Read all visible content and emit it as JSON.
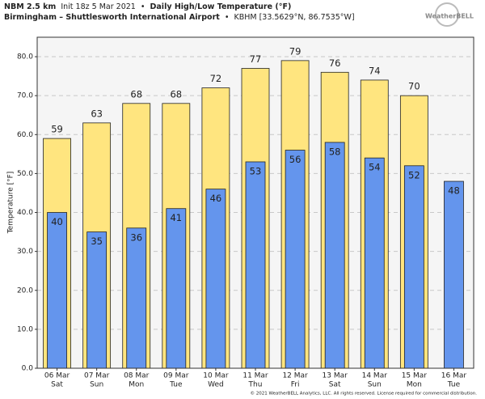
{
  "chart_data": {
    "type": "bar",
    "title_model": "NBM 2.5 km",
    "title_init": "Init 18z 5 Mar 2021",
    "separator": "•",
    "title_product": "Daily High/Low Temperature (°F)",
    "location": "Birmingham – Shuttlesworth International Airport",
    "station": "KBHM [33.5629°N, 86.7535°W]",
    "logo": "WeatherBELL",
    "footer": "© 2021 WeatherBELL Analytics, LLC. All rights reserved. License required for commercial distribution.",
    "y_label": "Temperature [°F]",
    "categories": [
      "06 Mar",
      "07 Mar",
      "08 Mar",
      "09 Mar",
      "10 Mar",
      "11 Mar",
      "12 Mar",
      "13 Mar",
      "14 Mar",
      "15 Mar",
      "16 Mar"
    ],
    "weekdays": [
      "Sat",
      "Sun",
      "Mon",
      "Tue",
      "Wed",
      "Thu",
      "Fri",
      "Sat",
      "Sun",
      "Mon",
      "Tue"
    ],
    "series": [
      {
        "name": "High",
        "color": "#ffe57f",
        "values": [
          59,
          63,
          68,
          68,
          72,
          77,
          79,
          76,
          74,
          70,
          null
        ]
      },
      {
        "name": "Low",
        "color": "#6495ed",
        "values": [
          40,
          35,
          36,
          41,
          46,
          53,
          56,
          58,
          54,
          52,
          48
        ]
      }
    ],
    "ylim": [
      0,
      85
    ],
    "yticks": [
      {
        "value": 0,
        "label": "0.0"
      },
      {
        "value": 10,
        "label": "10.0"
      },
      {
        "value": 20,
        "label": "20.0"
      },
      {
        "value": 30,
        "label": "30.0"
      },
      {
        "value": 40,
        "label": "40.0"
      },
      {
        "value": 50,
        "label": "50.0"
      },
      {
        "value": 60,
        "label": "60.0"
      },
      {
        "value": 70,
        "label": "70.0"
      },
      {
        "value": 80,
        "label": "80.0"
      }
    ],
    "grid": true
  }
}
